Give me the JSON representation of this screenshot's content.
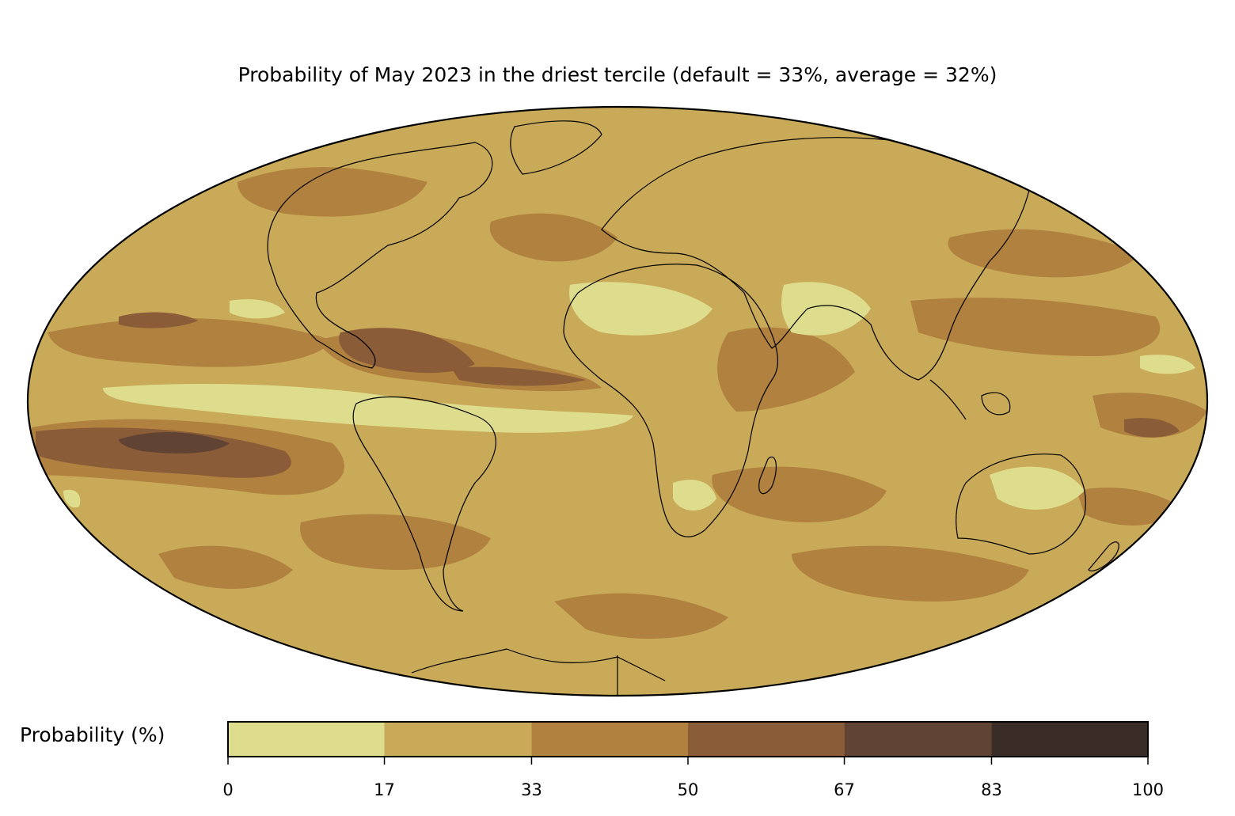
{
  "title": "Probability of May 2023 in the driest tercile (default = 33%, average = 32%)",
  "colorbar": {
    "label": "Probability (%)",
    "ticks": [
      "0",
      "17",
      "33",
      "50",
      "67",
      "83",
      "100"
    ],
    "bins": [
      {
        "from": 0,
        "to": 17,
        "color": "#dedd8e"
      },
      {
        "from": 17,
        "to": 33,
        "color": "#c9aa58"
      },
      {
        "from": 33,
        "to": 50,
        "color": "#b0813f"
      },
      {
        "from": 50,
        "to": 67,
        "color": "#8a5c38"
      },
      {
        "from": 67,
        "to": 83,
        "color": "#614333"
      },
      {
        "from": 83,
        "to": 100,
        "color": "#3a2c26"
      }
    ]
  },
  "map": {
    "projection": "Mollweide",
    "background_color": "#c9aa58"
  }
}
